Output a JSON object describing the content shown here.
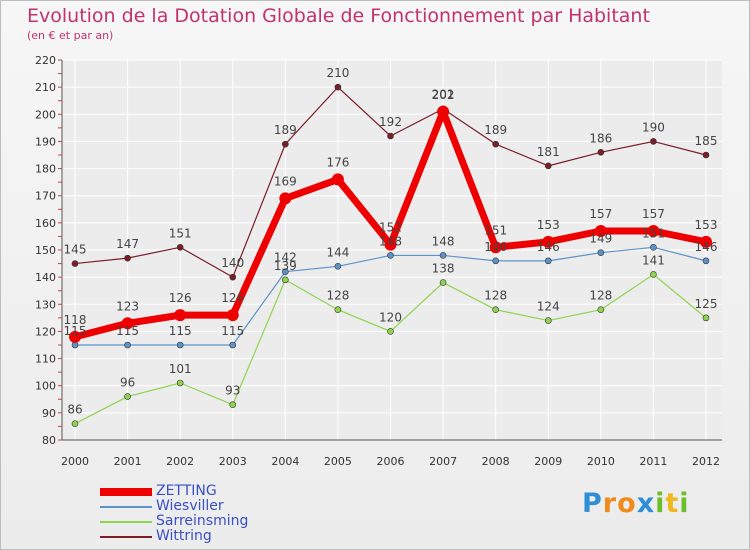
{
  "title": "Evolution de la Dotation Globale de Fonctionnement par Habitant",
  "subtitle": "(en € et par an)",
  "logo": {
    "letters": [
      "P",
      "r",
      "o",
      "x",
      "i",
      "t",
      "i"
    ],
    "colors": [
      "#2e8fd6",
      "#f08a1c",
      "#f08a1c",
      "#2e8fd6",
      "#6cbf2a",
      "#f0b81c",
      "#6cbf2a"
    ]
  },
  "chart_data": {
    "type": "line",
    "title": "Evolution de la Dotation Globale de Fonctionnement par Habitant",
    "subtitle": "(en € et par an)",
    "xlabel": "",
    "ylabel": "",
    "ylim": [
      80,
      220
    ],
    "ytick_step": 10,
    "grid": true,
    "legend_position": "bottom-left",
    "x": [
      "2000",
      "2001",
      "2002",
      "2003",
      "2004",
      "2005",
      "2006",
      "2007",
      "2008",
      "2009",
      "2010",
      "2011",
      "2012"
    ],
    "series": [
      {
        "name": "Wittring",
        "color": "#7a1e28",
        "line_width": 1.2,
        "marker": 3,
        "values": [
          145,
          147,
          151,
          140,
          189,
          210,
          192,
          202,
          189,
          181,
          186,
          190,
          185
        ]
      },
      {
        "name": "Sarreinsming",
        "color": "#8fd44f",
        "line_width": 1.2,
        "marker": 3,
        "values": [
          86,
          96,
          101,
          93,
          139,
          128,
          120,
          138,
          128,
          124,
          128,
          141,
          125
        ]
      },
      {
        "name": "Wiesviller",
        "color": "#5b93c9",
        "line_width": 1.2,
        "marker": 3,
        "values": [
          115,
          115,
          115,
          115,
          142,
          144,
          148,
          148,
          146,
          146,
          149,
          151,
          146
        ]
      },
      {
        "name": "ZETTING",
        "color": "#ee0000",
        "line_width": 7,
        "marker": 6,
        "values": [
          118,
          123,
          126,
          126,
          169,
          176,
          152,
          201,
          151,
          153,
          157,
          157,
          153
        ]
      }
    ],
    "legend": [
      "ZETTING",
      "Wiesviller",
      "Sarreinsming",
      "Wittring"
    ]
  }
}
